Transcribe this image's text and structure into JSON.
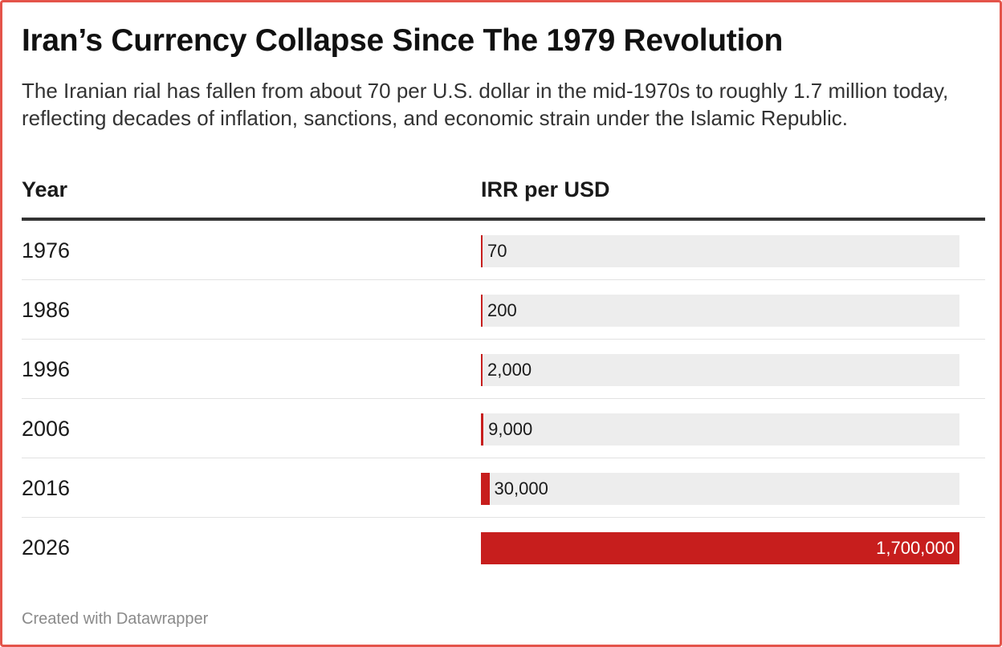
{
  "title": "Iran’s Currency Collapse Since The 1979 Revolution",
  "subtitle": "The Iranian rial has fallen from about 70 per U.S. dollar in the mid-1970s to roughly 1.7 million today, reflecting decades of inflation, sanctions, and economic strain under the Islamic Republic.",
  "footer": "Created with Datawrapper",
  "colors": {
    "bar": "#c71e1d",
    "track": "#ededed",
    "frame": "#e4544a"
  },
  "chart_data": {
    "type": "bar",
    "title": "Iran’s Currency Collapse Since The 1979 Revolution",
    "xlabel": "Year",
    "ylabel": "IRR per USD",
    "ylim": [
      0,
      1700000
    ],
    "categories": [
      "1976",
      "1986",
      "1996",
      "2006",
      "2016",
      "2026"
    ],
    "values": [
      70,
      200,
      2000,
      9000,
      30000,
      1700000
    ],
    "value_labels": [
      "70",
      "200",
      "2,000",
      "9,000",
      "30,000",
      "1,700,000"
    ]
  }
}
